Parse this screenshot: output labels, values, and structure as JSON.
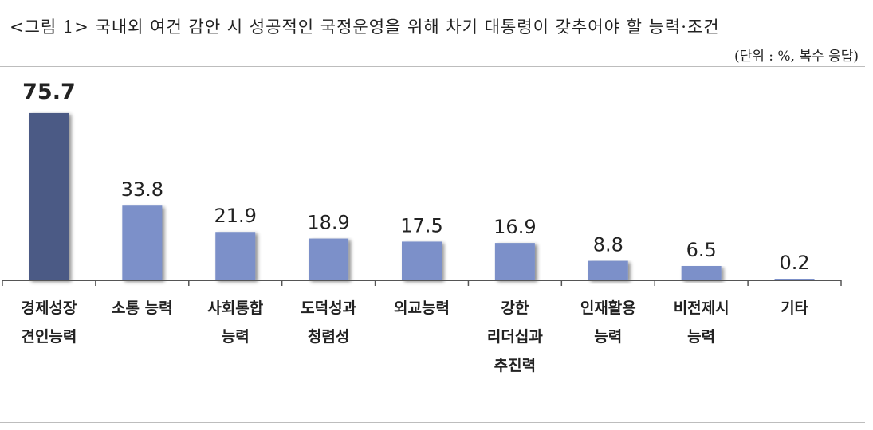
{
  "header": {
    "title": "<그림 1> 국내외 여건 감안 시 성공적인 국정운영을 위해 차기 대통령이 갖추어야 할 능력·조건",
    "unit": "(단위 : %, 복수 응답)"
  },
  "colors": {
    "highlight": "#4b5a85",
    "bar": "#7b90c9",
    "axis": "#555555"
  },
  "chart_data": {
    "type": "bar",
    "title": "",
    "xlabel": "",
    "ylabel": "",
    "ylim": [
      0,
      80
    ],
    "grid": false,
    "legend": "none",
    "categories": [
      [
        "경제성장",
        "견인능력"
      ],
      [
        "소통 능력"
      ],
      [
        "사회통합",
        "능력"
      ],
      [
        "도덕성과",
        "청렴성"
      ],
      [
        "외교능력"
      ],
      [
        "강한",
        "리더십과",
        "추진력"
      ],
      [
        "인재활용",
        "능력"
      ],
      [
        "비전제시",
        "능력"
      ],
      [
        "기타"
      ]
    ],
    "values": [
      75.7,
      33.8,
      21.9,
      18.9,
      17.5,
      16.9,
      8.8,
      6.5,
      0.2
    ],
    "value_labels": [
      "75.7",
      "33.8",
      "21.9",
      "18.9",
      "17.5",
      "16.9",
      "8.8",
      "6.5",
      "0.2"
    ],
    "highlight_index": 0
  }
}
